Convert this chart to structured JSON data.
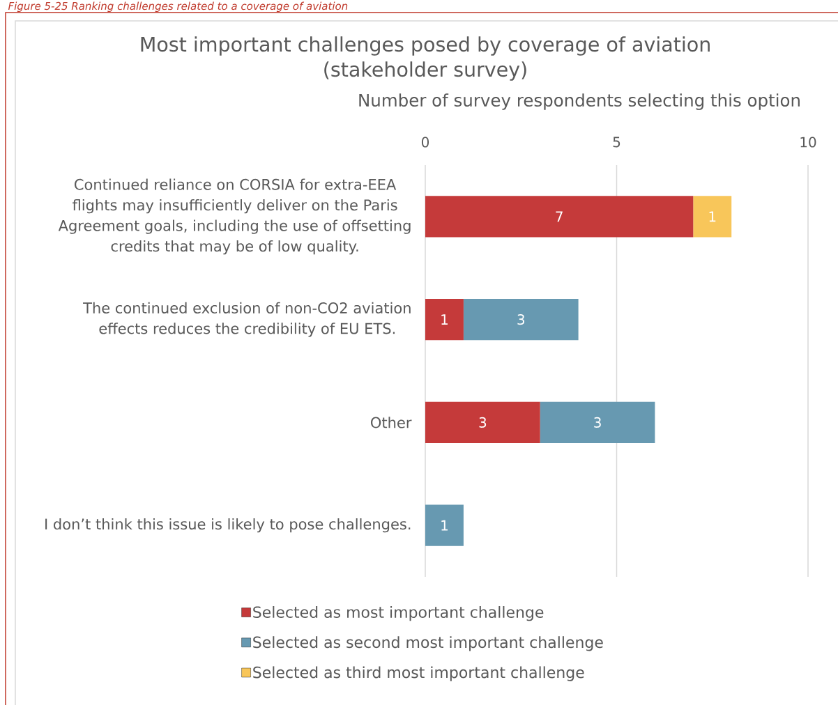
{
  "chart_data": {
    "type": "bar",
    "orientation": "horizontal",
    "stacked": true,
    "title": "Most important challenges posed by coverage of aviation (stakeholder survey)",
    "xlabel": "Number of survey respondents selecting this option",
    "annotations": [
      "Figure 5-25 Ranking challenges related to a coverage of aviation"
    ],
    "categories": [
      "Continued reliance on CORSIA for extra-EEA flights may insufficiently deliver on the Paris Agreement goals, including the use of offsetting credits that may be of low quality.",
      "The continued exclusion of non-CO2 aviation effects reduces the credibility of EU ETS.",
      "Other",
      "I don’t think this issue is likely to pose challenges."
    ],
    "series": [
      {
        "name": "Selected as most important challenge",
        "color": "#c53a3a",
        "values": [
          7,
          1,
          3,
          null
        ]
      },
      {
        "name": "Selected as second most important challenge",
        "color": "#6799b1",
        "values": [
          null,
          3,
          3,
          1
        ]
      },
      {
        "name": "Selected as third most important challenge",
        "color": "#f8c65a",
        "values": [
          1,
          null,
          null,
          null
        ]
      }
    ],
    "xlim": [
      0,
      10
    ],
    "xticks": [
      0,
      5,
      10
    ],
    "grid": "x",
    "data_labels": true,
    "legend": "bottom"
  }
}
